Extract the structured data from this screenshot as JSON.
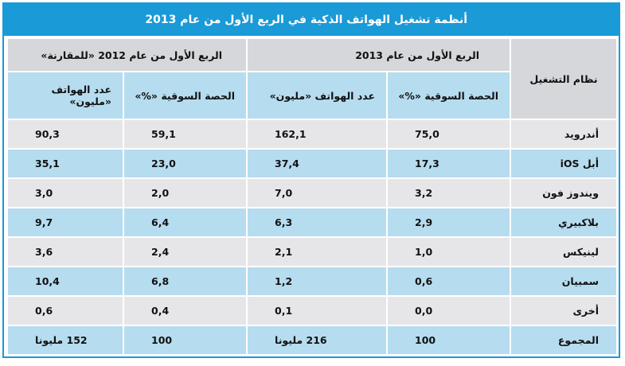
{
  "title": "أنظمة تشغيل الهواتف الذكية في الربع الأول من عام 2013",
  "table": {
    "os_header": "نظام التشغيل",
    "group_2013": "الربع الأول من عام 2013",
    "group_2012": "الربع الأول من عام 2012 «للمقارنة»",
    "col_share": "الحصة السوقية «%»",
    "col_units": "عدد الهواتف «مليون»",
    "rows": [
      {
        "os": "أندرويد",
        "share_2013": "75,0",
        "units_2013": "162,1",
        "share_2012": "59,1",
        "units_2012": "90,3"
      },
      {
        "os": "أبل iOS",
        "share_2013": "17,3",
        "units_2013": "37,4",
        "share_2012": "23,0",
        "units_2012": "35,1"
      },
      {
        "os": "ويندوز فون",
        "share_2013": "3,2",
        "units_2013": "7,0",
        "share_2012": "2,0",
        "units_2012": "3,0"
      },
      {
        "os": "بلاكبيري",
        "share_2013": "2,9",
        "units_2013": "6,3",
        "share_2012": "6,4",
        "units_2012": "9,7"
      },
      {
        "os": "لينيكس",
        "share_2013": "1,0",
        "units_2013": "2,1",
        "share_2012": "2,4",
        "units_2012": "3,6"
      },
      {
        "os": "سمبيان",
        "share_2013": "0,6",
        "units_2013": "1,2",
        "share_2012": "6,8",
        "units_2012": "10,4"
      },
      {
        "os": "أخرى",
        "share_2013": "0,0",
        "units_2013": "0,1",
        "share_2012": "0,4",
        "units_2012": "0,6"
      }
    ],
    "total": {
      "os": "المجموع",
      "share_2013": "100",
      "units_2013": "216 مليونا",
      "share_2012": "100",
      "units_2012": "152 مليونا"
    }
  }
}
